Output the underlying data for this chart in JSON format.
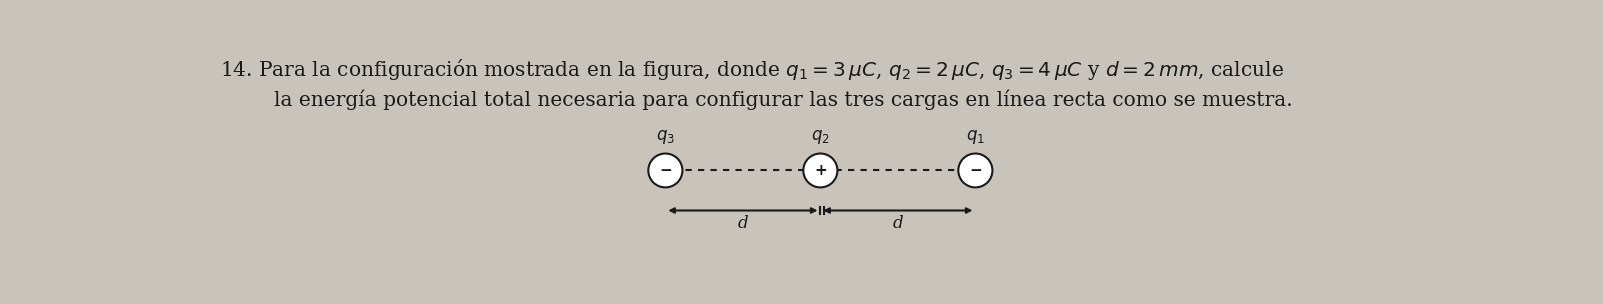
{
  "bg_color": "#c8c4bc",
  "text_color": "#1a1a1a",
  "line1": "14. Para la configuración mostrada en la figura, donde $q_1 = 3\\,\\mu C$, $q_2 = 2\\,\\mu C$, $q_3 = 4\\,\\mu C$ y $d = 2\\,mm$, calcule",
  "line2": "la energía potencial total necesaria para configurar las tres cargas en línea recta como se muestra.",
  "charge_labels": [
    "$q_3$",
    "$q_2$",
    "$q_1$"
  ],
  "charge_signs": [
    "−",
    "+",
    "−"
  ],
  "d_label": "d",
  "font_size_text": 14.5,
  "font_size_label": 12,
  "font_size_sign": 11
}
